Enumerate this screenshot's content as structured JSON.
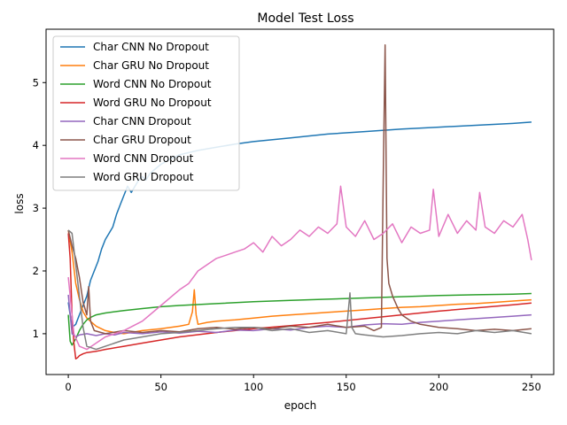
{
  "chart_data": {
    "type": "line",
    "title": "Model Test Loss",
    "xlabel": "epoch",
    "ylabel": "loss",
    "xlim": [
      -12,
      262
    ],
    "ylim": [
      0.35,
      5.85
    ],
    "xticks": [
      0,
      50,
      100,
      150,
      200,
      250
    ],
    "yticks": [
      1,
      2,
      3,
      4,
      5
    ],
    "grid": false,
    "legend_position": "top-left",
    "series": [
      {
        "name": "Char CNN No Dropout",
        "color": "#1f77b4",
        "x": [
          0,
          2,
          4,
          6,
          8,
          10,
          12,
          14,
          16,
          18,
          20,
          22,
          24,
          26,
          28,
          30,
          32,
          34,
          36,
          38,
          40,
          42,
          44,
          46,
          48,
          50,
          55,
          60,
          70,
          80,
          90,
          100,
          120,
          140,
          160,
          180,
          200,
          220,
          240,
          250
        ],
        "y": [
          1.5,
          1.1,
          1.15,
          1.3,
          1.45,
          1.6,
          1.85,
          2.0,
          2.15,
          2.35,
          2.5,
          2.6,
          2.7,
          2.9,
          3.05,
          3.2,
          3.35,
          3.25,
          3.35,
          3.45,
          3.5,
          3.45,
          3.55,
          3.6,
          3.65,
          3.7,
          3.78,
          3.85,
          3.92,
          3.97,
          4.02,
          4.06,
          4.12,
          4.18,
          4.22,
          4.26,
          4.29,
          4.32,
          4.35,
          4.37
        ]
      },
      {
        "name": "Char GRU No Dropout",
        "color": "#ff7f0e",
        "x": [
          0,
          2,
          4,
          6,
          8,
          10,
          15,
          20,
          25,
          30,
          40,
          50,
          60,
          65,
          67,
          68,
          69,
          70,
          75,
          80,
          90,
          100,
          110,
          120,
          130,
          140,
          150,
          160,
          170,
          180,
          190,
          200,
          210,
          220,
          230,
          240,
          250
        ],
        "y": [
          2.65,
          2.3,
          1.8,
          1.55,
          1.35,
          1.25,
          1.12,
          1.05,
          1.02,
          1.0,
          1.05,
          1.08,
          1.12,
          1.15,
          1.35,
          1.7,
          1.3,
          1.15,
          1.18,
          1.2,
          1.22,
          1.25,
          1.28,
          1.3,
          1.32,
          1.34,
          1.36,
          1.38,
          1.4,
          1.42,
          1.43,
          1.45,
          1.47,
          1.48,
          1.5,
          1.52,
          1.54
        ]
      },
      {
        "name": "Word CNN No Dropout",
        "color": "#2ca02c",
        "x": [
          0,
          1,
          2,
          4,
          6,
          8,
          10,
          12,
          15,
          20,
          30,
          40,
          50,
          60,
          80,
          100,
          120,
          140,
          160,
          180,
          200,
          220,
          240,
          250
        ],
        "y": [
          1.3,
          0.88,
          0.82,
          0.92,
          1.05,
          1.15,
          1.22,
          1.26,
          1.3,
          1.33,
          1.37,
          1.4,
          1.43,
          1.45,
          1.48,
          1.51,
          1.53,
          1.55,
          1.57,
          1.59,
          1.61,
          1.62,
          1.63,
          1.64
        ]
      },
      {
        "name": "Word GRU No Dropout",
        "color": "#d62728",
        "x": [
          0,
          1,
          2,
          3,
          4,
          5,
          6,
          8,
          10,
          15,
          20,
          30,
          40,
          50,
          60,
          80,
          100,
          120,
          140,
          160,
          180,
          200,
          220,
          240,
          250
        ],
        "y": [
          2.6,
          2.2,
          1.3,
          0.85,
          0.6,
          0.62,
          0.65,
          0.68,
          0.7,
          0.72,
          0.75,
          0.8,
          0.85,
          0.9,
          0.95,
          1.02,
          1.08,
          1.13,
          1.18,
          1.24,
          1.3,
          1.36,
          1.41,
          1.46,
          1.49
        ]
      },
      {
        "name": "Char CNN Dropout",
        "color": "#9467bd",
        "x": [
          0,
          2,
          4,
          6,
          10,
          15,
          20,
          25,
          30,
          40,
          50,
          60,
          70,
          80,
          90,
          100,
          110,
          120,
          130,
          140,
          150,
          160,
          170,
          180,
          190,
          200,
          210,
          220,
          230,
          240,
          250
        ],
        "y": [
          1.62,
          1.0,
          0.95,
          0.98,
          1.0,
          0.97,
          1.0,
          0.98,
          1.02,
          1.0,
          1.03,
          1.01,
          1.04,
          1.02,
          1.06,
          1.05,
          1.08,
          1.06,
          1.1,
          1.12,
          1.1,
          1.14,
          1.16,
          1.15,
          1.18,
          1.2,
          1.22,
          1.24,
          1.26,
          1.28,
          1.3
        ]
      },
      {
        "name": "Char GRU Dropout",
        "color": "#8c564b",
        "x": [
          0,
          2,
          4,
          6,
          8,
          10,
          11,
          12,
          14,
          20,
          30,
          40,
          50,
          60,
          70,
          80,
          90,
          100,
          110,
          120,
          130,
          140,
          150,
          160,
          165,
          169,
          170,
          171,
          172,
          173,
          175,
          178,
          180,
          185,
          190,
          200,
          210,
          220,
          230,
          240,
          250
        ],
        "y": [
          2.65,
          2.4,
          2.2,
          1.9,
          1.5,
          1.3,
          1.75,
          1.2,
          1.05,
          1.0,
          1.05,
          1.02,
          1.05,
          1.03,
          1.08,
          1.1,
          1.07,
          1.1,
          1.08,
          1.12,
          1.1,
          1.15,
          1.1,
          1.12,
          1.05,
          1.1,
          3.5,
          5.6,
          2.2,
          1.8,
          1.6,
          1.4,
          1.3,
          1.2,
          1.15,
          1.1,
          1.08,
          1.05,
          1.07,
          1.05,
          1.08
        ]
      },
      {
        "name": "Word CNN Dropout",
        "color": "#e377c2",
        "x": [
          0,
          3,
          6,
          10,
          15,
          20,
          30,
          40,
          50,
          60,
          65,
          70,
          75,
          80,
          85,
          90,
          95,
          100,
          105,
          110,
          115,
          120,
          125,
          130,
          135,
          140,
          145,
          147,
          150,
          155,
          160,
          165,
          170,
          175,
          180,
          185,
          190,
          195,
          197,
          200,
          205,
          210,
          215,
          220,
          222,
          225,
          230,
          235,
          240,
          245,
          248,
          250
        ],
        "y": [
          1.9,
          1.0,
          0.8,
          0.75,
          0.85,
          0.95,
          1.05,
          1.2,
          1.45,
          1.7,
          1.8,
          2.0,
          2.1,
          2.2,
          2.25,
          2.3,
          2.35,
          2.45,
          2.3,
          2.55,
          2.4,
          2.5,
          2.65,
          2.55,
          2.7,
          2.6,
          2.75,
          3.35,
          2.7,
          2.55,
          2.8,
          2.5,
          2.6,
          2.75,
          2.45,
          2.7,
          2.6,
          2.65,
          3.3,
          2.55,
          2.9,
          2.6,
          2.8,
          2.65,
          3.25,
          2.7,
          2.6,
          2.8,
          2.7,
          2.9,
          2.5,
          2.17
        ]
      },
      {
        "name": "Word GRU Dropout",
        "color": "#7f7f7f",
        "x": [
          0,
          2,
          4,
          6,
          8,
          10,
          15,
          20,
          30,
          40,
          50,
          60,
          70,
          80,
          90,
          100,
          110,
          120,
          130,
          140,
          150,
          152,
          153,
          155,
          160,
          170,
          180,
          190,
          200,
          210,
          220,
          230,
          240,
          250
        ],
        "y": [
          2.65,
          2.6,
          2.1,
          1.6,
          1.1,
          0.8,
          0.75,
          0.8,
          0.9,
          0.95,
          1.0,
          1.02,
          1.05,
          1.08,
          1.1,
          1.1,
          1.05,
          1.08,
          1.02,
          1.05,
          1.0,
          1.65,
          1.1,
          1.0,
          0.98,
          0.95,
          0.97,
          1.0,
          1.02,
          1.0,
          1.05,
          1.02,
          1.05,
          1.0
        ]
      }
    ]
  }
}
